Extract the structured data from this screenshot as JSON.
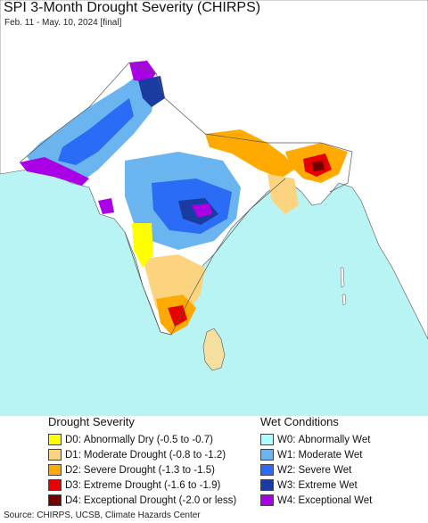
{
  "map": {
    "title": "SPI 3-Month Drought Severity (CHIRPS)",
    "subtitle": "Feb. 11 - May. 10, 2024 [final]",
    "colors": {
      "ocean": "#b9f4f4",
      "land_neutral": "#ffffff",
      "border": "#555555"
    }
  },
  "legend": {
    "drought": {
      "title": "Drought Severity",
      "items": [
        {
          "code": "D0:",
          "desc": "Abnormally Dry (-0.5 to -0.7)",
          "color": "#ffff00"
        },
        {
          "code": "D1:",
          "desc": "Moderate Drought (-0.8 to -1.2)",
          "color": "#fcd37f"
        },
        {
          "code": "D2:",
          "desc": "Severe Drought (-1.3 to -1.5)",
          "color": "#ffaa00"
        },
        {
          "code": "D3:",
          "desc": "Extreme Drought (-1.6 to -1.9)",
          "color": "#e60000"
        },
        {
          "code": "D4:",
          "desc": "Exceptional Drought (-2.0 or less)",
          "color": "#730000"
        }
      ]
    },
    "wet": {
      "title": "Wet Conditions",
      "items": [
        {
          "code": "W0:",
          "desc": "Abnormally Wet",
          "color": "#aaffff"
        },
        {
          "code": "W1:",
          "desc": "Moderate Wet",
          "color": "#6ab4f0"
        },
        {
          "code": "W2:",
          "desc": "Severe Wet",
          "color": "#2a6cf5"
        },
        {
          "code": "W3:",
          "desc": "Extreme Wet",
          "color": "#1a3ca0"
        },
        {
          "code": "W4:",
          "desc": "Exceptional Wet",
          "color": "#aa00e6"
        }
      ]
    }
  },
  "footer": {
    "source": "Source: CHIRPS, UCSB, Climate Hazards Center"
  }
}
